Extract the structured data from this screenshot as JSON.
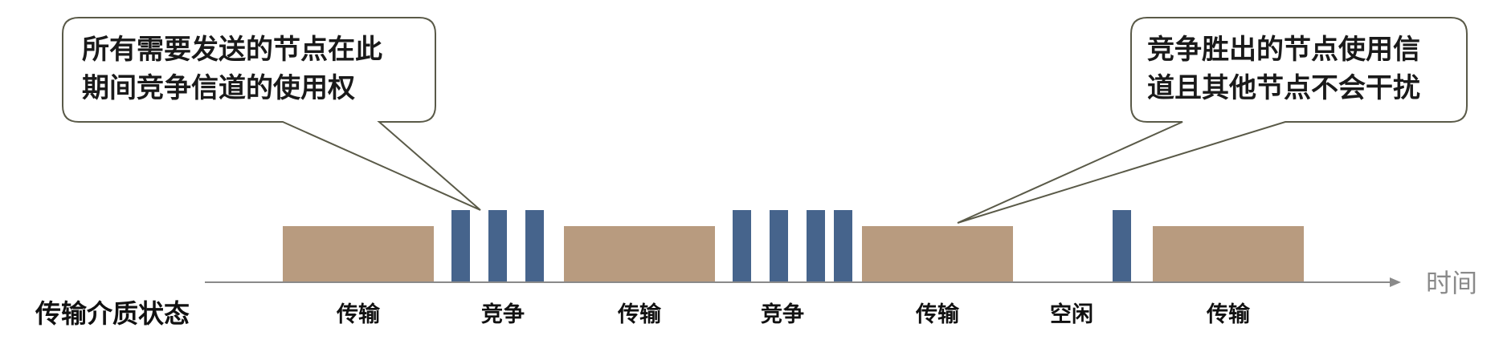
{
  "callouts": {
    "left": {
      "line1": "所有需要发送的节点在此",
      "line2": "期间竞争信道的使用权"
    },
    "right": {
      "line1": "竞争胜出的节点使用信",
      "line2": "道且其他节点不会干扰"
    }
  },
  "axis": {
    "label": "时间"
  },
  "row_title": "传输介质状态",
  "segments": [
    {
      "label": "传输"
    },
    {
      "label": "竞争"
    },
    {
      "label": "传输"
    },
    {
      "label": "竞争"
    },
    {
      "label": "传输"
    },
    {
      "label": "空闲"
    },
    {
      "label": "传输"
    }
  ],
  "colors": {
    "transmission_block": "#b89b7f",
    "contention_slot": "#46648c",
    "callout_border": "#5a5a48",
    "axis": "#8a8a8a"
  }
}
